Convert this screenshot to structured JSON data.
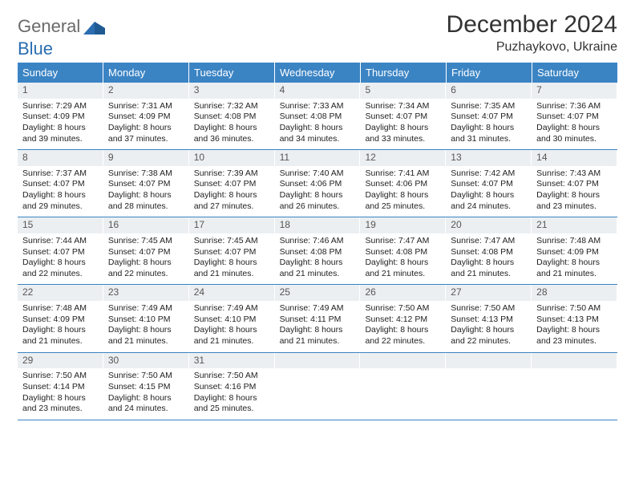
{
  "colors": {
    "header_bg": "#3b84c4",
    "row_divider": "#3b84c4",
    "daynum_bg": "#eceff1",
    "text": "#222222",
    "title": "#333333",
    "logo_gray": "#6a6a6a",
    "logo_blue": "#2a6db0"
  },
  "logo": {
    "word1": "General",
    "word2": "Blue"
  },
  "title": "December 2024",
  "location": "Puzhaykovo, Ukraine",
  "weekdays": [
    "Sunday",
    "Monday",
    "Tuesday",
    "Wednesday",
    "Thursday",
    "Friday",
    "Saturday"
  ],
  "weeks": [
    [
      {
        "n": "1",
        "sr": "Sunrise: 7:29 AM",
        "ss": "Sunset: 4:09 PM",
        "d1": "Daylight: 8 hours",
        "d2": "and 39 minutes."
      },
      {
        "n": "2",
        "sr": "Sunrise: 7:31 AM",
        "ss": "Sunset: 4:09 PM",
        "d1": "Daylight: 8 hours",
        "d2": "and 37 minutes."
      },
      {
        "n": "3",
        "sr": "Sunrise: 7:32 AM",
        "ss": "Sunset: 4:08 PM",
        "d1": "Daylight: 8 hours",
        "d2": "and 36 minutes."
      },
      {
        "n": "4",
        "sr": "Sunrise: 7:33 AM",
        "ss": "Sunset: 4:08 PM",
        "d1": "Daylight: 8 hours",
        "d2": "and 34 minutes."
      },
      {
        "n": "5",
        "sr": "Sunrise: 7:34 AM",
        "ss": "Sunset: 4:07 PM",
        "d1": "Daylight: 8 hours",
        "d2": "and 33 minutes."
      },
      {
        "n": "6",
        "sr": "Sunrise: 7:35 AM",
        "ss": "Sunset: 4:07 PM",
        "d1": "Daylight: 8 hours",
        "d2": "and 31 minutes."
      },
      {
        "n": "7",
        "sr": "Sunrise: 7:36 AM",
        "ss": "Sunset: 4:07 PM",
        "d1": "Daylight: 8 hours",
        "d2": "and 30 minutes."
      }
    ],
    [
      {
        "n": "8",
        "sr": "Sunrise: 7:37 AM",
        "ss": "Sunset: 4:07 PM",
        "d1": "Daylight: 8 hours",
        "d2": "and 29 minutes."
      },
      {
        "n": "9",
        "sr": "Sunrise: 7:38 AM",
        "ss": "Sunset: 4:07 PM",
        "d1": "Daylight: 8 hours",
        "d2": "and 28 minutes."
      },
      {
        "n": "10",
        "sr": "Sunrise: 7:39 AM",
        "ss": "Sunset: 4:07 PM",
        "d1": "Daylight: 8 hours",
        "d2": "and 27 minutes."
      },
      {
        "n": "11",
        "sr": "Sunrise: 7:40 AM",
        "ss": "Sunset: 4:06 PM",
        "d1": "Daylight: 8 hours",
        "d2": "and 26 minutes."
      },
      {
        "n": "12",
        "sr": "Sunrise: 7:41 AM",
        "ss": "Sunset: 4:06 PM",
        "d1": "Daylight: 8 hours",
        "d2": "and 25 minutes."
      },
      {
        "n": "13",
        "sr": "Sunrise: 7:42 AM",
        "ss": "Sunset: 4:07 PM",
        "d1": "Daylight: 8 hours",
        "d2": "and 24 minutes."
      },
      {
        "n": "14",
        "sr": "Sunrise: 7:43 AM",
        "ss": "Sunset: 4:07 PM",
        "d1": "Daylight: 8 hours",
        "d2": "and 23 minutes."
      }
    ],
    [
      {
        "n": "15",
        "sr": "Sunrise: 7:44 AM",
        "ss": "Sunset: 4:07 PM",
        "d1": "Daylight: 8 hours",
        "d2": "and 22 minutes."
      },
      {
        "n": "16",
        "sr": "Sunrise: 7:45 AM",
        "ss": "Sunset: 4:07 PM",
        "d1": "Daylight: 8 hours",
        "d2": "and 22 minutes."
      },
      {
        "n": "17",
        "sr": "Sunrise: 7:45 AM",
        "ss": "Sunset: 4:07 PM",
        "d1": "Daylight: 8 hours",
        "d2": "and 21 minutes."
      },
      {
        "n": "18",
        "sr": "Sunrise: 7:46 AM",
        "ss": "Sunset: 4:08 PM",
        "d1": "Daylight: 8 hours",
        "d2": "and 21 minutes."
      },
      {
        "n": "19",
        "sr": "Sunrise: 7:47 AM",
        "ss": "Sunset: 4:08 PM",
        "d1": "Daylight: 8 hours",
        "d2": "and 21 minutes."
      },
      {
        "n": "20",
        "sr": "Sunrise: 7:47 AM",
        "ss": "Sunset: 4:08 PM",
        "d1": "Daylight: 8 hours",
        "d2": "and 21 minutes."
      },
      {
        "n": "21",
        "sr": "Sunrise: 7:48 AM",
        "ss": "Sunset: 4:09 PM",
        "d1": "Daylight: 8 hours",
        "d2": "and 21 minutes."
      }
    ],
    [
      {
        "n": "22",
        "sr": "Sunrise: 7:48 AM",
        "ss": "Sunset: 4:09 PM",
        "d1": "Daylight: 8 hours",
        "d2": "and 21 minutes."
      },
      {
        "n": "23",
        "sr": "Sunrise: 7:49 AM",
        "ss": "Sunset: 4:10 PM",
        "d1": "Daylight: 8 hours",
        "d2": "and 21 minutes."
      },
      {
        "n": "24",
        "sr": "Sunrise: 7:49 AM",
        "ss": "Sunset: 4:10 PM",
        "d1": "Daylight: 8 hours",
        "d2": "and 21 minutes."
      },
      {
        "n": "25",
        "sr": "Sunrise: 7:49 AM",
        "ss": "Sunset: 4:11 PM",
        "d1": "Daylight: 8 hours",
        "d2": "and 21 minutes."
      },
      {
        "n": "26",
        "sr": "Sunrise: 7:50 AM",
        "ss": "Sunset: 4:12 PM",
        "d1": "Daylight: 8 hours",
        "d2": "and 22 minutes."
      },
      {
        "n": "27",
        "sr": "Sunrise: 7:50 AM",
        "ss": "Sunset: 4:13 PM",
        "d1": "Daylight: 8 hours",
        "d2": "and 22 minutes."
      },
      {
        "n": "28",
        "sr": "Sunrise: 7:50 AM",
        "ss": "Sunset: 4:13 PM",
        "d1": "Daylight: 8 hours",
        "d2": "and 23 minutes."
      }
    ],
    [
      {
        "n": "29",
        "sr": "Sunrise: 7:50 AM",
        "ss": "Sunset: 4:14 PM",
        "d1": "Daylight: 8 hours",
        "d2": "and 23 minutes."
      },
      {
        "n": "30",
        "sr": "Sunrise: 7:50 AM",
        "ss": "Sunset: 4:15 PM",
        "d1": "Daylight: 8 hours",
        "d2": "and 24 minutes."
      },
      {
        "n": "31",
        "sr": "Sunrise: 7:50 AM",
        "ss": "Sunset: 4:16 PM",
        "d1": "Daylight: 8 hours",
        "d2": "and 25 minutes."
      },
      {
        "empty": true
      },
      {
        "empty": true
      },
      {
        "empty": true
      },
      {
        "empty": true
      }
    ]
  ]
}
